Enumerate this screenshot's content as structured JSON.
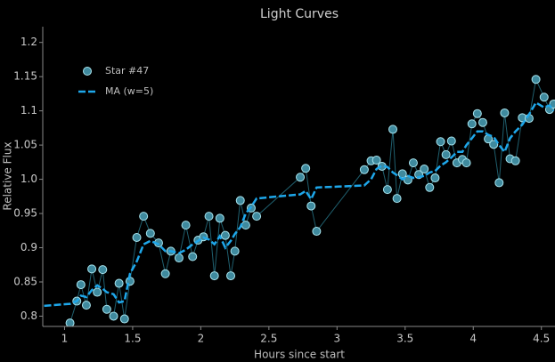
{
  "chart_data": {
    "type": "scatter",
    "title": "Light Curves",
    "xlabel": "Hours since start",
    "ylabel": "Relative Flux",
    "xlim": [
      0.84,
      4.6
    ],
    "ylim": [
      0.785,
      1.223
    ],
    "xticks": [
      1,
      1.5,
      2,
      2.5,
      3,
      3.5,
      4,
      4.5
    ],
    "yticks": [
      0.8,
      0.85,
      0.9,
      0.95,
      {
        "value": 1,
        "label": "1.0"
      },
      1.05,
      1.1,
      1.15,
      1.2
    ],
    "legend": "upper left",
    "series": [
      {
        "name": "Star #47",
        "type": "scatter",
        "color": "#3f8a9e",
        "edgecolor": "#a8e4ee",
        "linecolor": "#1f5f6e",
        "x": [
          1.04,
          1.09,
          1.12,
          1.16,
          1.2,
          1.24,
          1.28,
          1.31,
          1.36,
          1.4,
          1.44,
          1.48,
          1.53,
          1.58,
          1.63,
          1.69,
          1.74,
          1.78,
          1.84,
          1.89,
          1.94,
          1.98,
          2.02,
          2.06,
          2.1,
          2.14,
          2.18,
          2.22,
          2.25,
          2.29,
          2.33,
          2.37,
          2.41,
          2.73,
          2.77,
          2.81,
          2.85,
          3.2,
          3.25,
          3.29,
          3.33,
          3.37,
          3.41,
          3.44,
          3.48,
          3.52,
          3.56,
          3.6,
          3.64,
          3.68,
          3.72,
          3.76,
          3.8,
          3.84,
          3.88,
          3.92,
          3.95,
          3.99,
          4.03,
          4.07,
          4.11,
          4.15,
          4.19,
          4.23,
          4.27,
          4.31,
          4.36,
          4.41,
          4.46,
          4.52,
          4.56,
          4.59
        ],
        "values": [
          0.79,
          0.822,
          0.846,
          0.816,
          0.869,
          0.835,
          0.868,
          0.81,
          0.8,
          0.848,
          0.796,
          0.851,
          0.915,
          0.946,
          0.921,
          0.907,
          0.862,
          0.895,
          0.885,
          0.933,
          0.887,
          0.911,
          0.916,
          0.946,
          0.859,
          0.943,
          0.918,
          0.859,
          0.895,
          0.969,
          0.933,
          0.958,
          0.946,
          1.003,
          1.016,
          0.961,
          0.924,
          1.014,
          1.027,
          1.028,
          1.019,
          0.985,
          1.073,
          0.972,
          1.008,
          0.999,
          1.024,
          1.007,
          1.015,
          0.988,
          1.002,
          1.055,
          1.036,
          1.056,
          1.024,
          1.029,
          1.024,
          1.081,
          1.096,
          1.083,
          1.059,
          1.051,
          0.995,
          1.097,
          1.03,
          1.027,
          1.09,
          1.089,
          1.146,
          1.12,
          1.102,
          1.11
        ]
      },
      {
        "name": "MA (w=5)",
        "type": "line",
        "color": "#1ea7ea",
        "dashed": true,
        "x": [
          0.85,
          1.04,
          1.09,
          1.12,
          1.16,
          1.2,
          1.24,
          1.28,
          1.31,
          1.36,
          1.4,
          1.44,
          1.48,
          1.53,
          1.58,
          1.63,
          1.69,
          1.74,
          1.78,
          1.84,
          1.89,
          1.94,
          1.98,
          2.02,
          2.06,
          2.1,
          2.14,
          2.18,
          2.22,
          2.25,
          2.29,
          2.33,
          2.37,
          2.41,
          2.73,
          2.77,
          2.81,
          2.85,
          3.2,
          3.25,
          3.29,
          3.33,
          3.37,
          3.41,
          3.44,
          3.48,
          3.52,
          3.56,
          3.6,
          3.64,
          3.68,
          3.72,
          3.76,
          3.8,
          3.84,
          3.88,
          3.92,
          3.95,
          3.99,
          4.03,
          4.07,
          4.11,
          4.15,
          4.19,
          4.23,
          4.27,
          4.31,
          4.36,
          4.41,
          4.46,
          4.52,
          4.56,
          4.59
        ],
        "values": [
          0.815,
          0.818,
          0.822,
          0.83,
          0.828,
          0.838,
          0.845,
          0.84,
          0.835,
          0.832,
          0.82,
          0.822,
          0.862,
          0.88,
          0.905,
          0.91,
          0.905,
          0.895,
          0.895,
          0.892,
          0.897,
          0.905,
          0.91,
          0.915,
          0.912,
          0.905,
          0.917,
          0.9,
          0.91,
          0.92,
          0.93,
          0.95,
          0.96,
          0.972,
          0.978,
          0.983,
          0.971,
          0.988,
          0.991,
          1.0,
          1.015,
          1.02,
          1.018,
          1.01,
          1.006,
          1.0,
          1.005,
          1.002,
          1.003,
          1.005,
          1.01,
          1.012,
          1.02,
          1.025,
          1.032,
          1.04,
          1.04,
          1.05,
          1.06,
          1.07,
          1.07,
          1.065,
          1.062,
          1.05,
          1.04,
          1.06,
          1.07,
          1.08,
          1.095,
          1.112,
          1.105,
          1.108,
          1.1
        ]
      }
    ]
  }
}
